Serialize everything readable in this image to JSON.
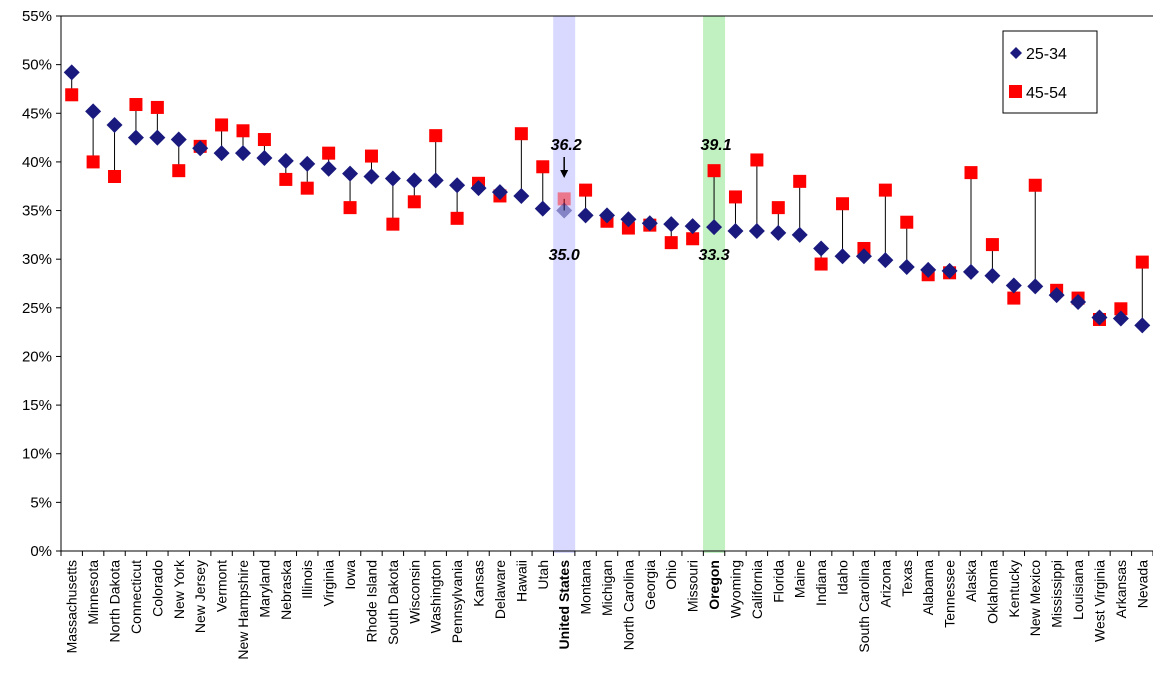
{
  "chart_data": {
    "type": "scatter",
    "title": "",
    "xlabel": "",
    "ylabel": "",
    "ylim": [
      0,
      55
    ],
    "y_ticks": [
      "0%",
      "5%",
      "10%",
      "15%",
      "20%",
      "25%",
      "30%",
      "35%",
      "40%",
      "45%",
      "50%",
      "55%"
    ],
    "grid": false,
    "legend_position": "top-right",
    "categories": [
      "Massachusetts",
      "Minnesota",
      "North Dakota",
      "Connecticut",
      "Colorado",
      "New York",
      "New Jersey",
      "Vermont",
      "New Hampshire",
      "Maryland",
      "Nebraska",
      "Illinois",
      "Virginia",
      "Iowa",
      "Rhode Island",
      "South Dakota",
      "Wisconsin",
      "Washington",
      "Pennsylvania",
      "Kansas",
      "Delaware",
      "Hawaii",
      "Utah",
      "United States",
      "Montana",
      "Michigan",
      "North Carolina",
      "Georgia",
      "Ohio",
      "Missouri",
      "Oregon",
      "Wyoming",
      "California",
      "Florida",
      "Maine",
      "Indiana",
      "Idaho",
      "South Carolina",
      "Arizona",
      "Texas",
      "Alabama",
      "Tennessee",
      "Alaska",
      "Oklahoma",
      "Kentucky",
      "New Mexico",
      "Mississippi",
      "Louisiana",
      "West Virginia",
      "Arkansas",
      "Nevada"
    ],
    "series": [
      {
        "name": "25-34",
        "color": "#1a1a7e",
        "marker": "diamond",
        "values": [
          49.2,
          45.2,
          43.8,
          42.5,
          42.5,
          42.3,
          41.4,
          40.9,
          40.9,
          40.4,
          40.1,
          39.8,
          39.3,
          38.8,
          38.5,
          38.3,
          38.1,
          38.1,
          37.6,
          37.3,
          36.9,
          36.5,
          35.2,
          35.0,
          34.5,
          34.5,
          34.1,
          33.7,
          33.6,
          33.4,
          33.3,
          32.9,
          32.9,
          32.7,
          32.5,
          31.1,
          30.3,
          30.3,
          29.9,
          29.2,
          28.9,
          28.8,
          28.7,
          28.3,
          27.3,
          27.2,
          26.3,
          25.6,
          24.0,
          23.9,
          23.2
        ]
      },
      {
        "name": "45-54",
        "color": "#ff0000",
        "marker": "square",
        "values": [
          46.9,
          40.0,
          38.5,
          45.9,
          45.6,
          39.1,
          41.6,
          43.8,
          43.2,
          42.3,
          38.2,
          37.3,
          40.9,
          35.3,
          40.6,
          33.6,
          35.9,
          42.7,
          34.2,
          37.8,
          36.5,
          42.9,
          39.5,
          36.2,
          37.1,
          33.9,
          33.2,
          33.5,
          31.7,
          32.1,
          39.1,
          36.4,
          40.2,
          35.3,
          38.0,
          29.5,
          35.7,
          31.1,
          37.1,
          33.8,
          28.4,
          28.6,
          38.9,
          31.5,
          26.0,
          37.6,
          26.8,
          26.0,
          23.8,
          24.9,
          29.7
        ]
      }
    ],
    "highlights": [
      {
        "category": "United States",
        "color": "#8080ff",
        "label_color": "#3333ff"
      },
      {
        "category": "Oregon",
        "color": "#33cc33",
        "label_color": "#008000"
      }
    ],
    "annotations": [
      {
        "category": "United States",
        "upper": "36.2",
        "lower": "35.0"
      },
      {
        "category": "Oregon",
        "upper": "39.1",
        "lower": "33.3"
      }
    ]
  }
}
